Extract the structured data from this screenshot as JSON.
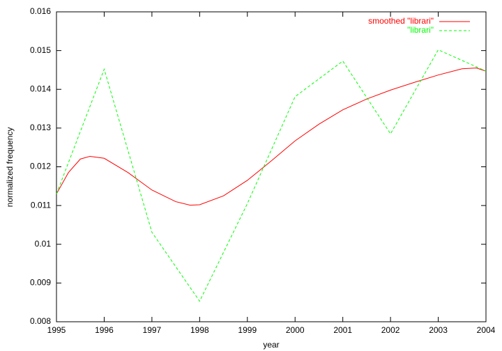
{
  "chart_data": {
    "type": "line",
    "xlabel": "year",
    "ylabel": "normalized frequency",
    "xlim": [
      1995,
      2004
    ],
    "xticks": [
      1995,
      1996,
      1997,
      1998,
      1999,
      2000,
      2001,
      2002,
      2003,
      2004
    ],
    "ylim": [
      0.008,
      0.016
    ],
    "yticks": [
      0.008,
      0.009,
      0.01,
      0.011,
      0.012,
      0.013,
      0.014,
      0.015,
      0.016
    ],
    "legend": "top-right",
    "series": [
      {
        "name": "smoothed \"librari\"",
        "color": "#ff0000",
        "dash": false,
        "x": [
          1995,
          1995.25,
          1995.5,
          1995.7,
          1996,
          1996.5,
          1997,
          1997.5,
          1997.8,
          1998,
          1998.5,
          1999,
          1999.5,
          2000,
          2000.5,
          2001,
          2001.5,
          2002,
          2002.5,
          2003,
          2003.5,
          2003.8,
          2004
        ],
        "values": [
          0.0113,
          0.01185,
          0.0122,
          0.01227,
          0.01222,
          0.01185,
          0.0114,
          0.0111,
          0.01101,
          0.01102,
          0.01125,
          0.01165,
          0.01215,
          0.01267,
          0.0131,
          0.01347,
          0.01375,
          0.01398,
          0.01418,
          0.01437,
          0.01453,
          0.01455,
          0.01447
        ]
      },
      {
        "name": "\"librari\"",
        "color": "#00ff00",
        "dash": true,
        "x": [
          1995,
          1996,
          1997,
          1998,
          1999,
          2000,
          2001,
          2002,
          2003,
          2004
        ],
        "values": [
          0.0113,
          0.01452,
          0.01031,
          0.00853,
          0.01105,
          0.01381,
          0.01473,
          0.01285,
          0.01502,
          0.01447
        ]
      }
    ]
  }
}
